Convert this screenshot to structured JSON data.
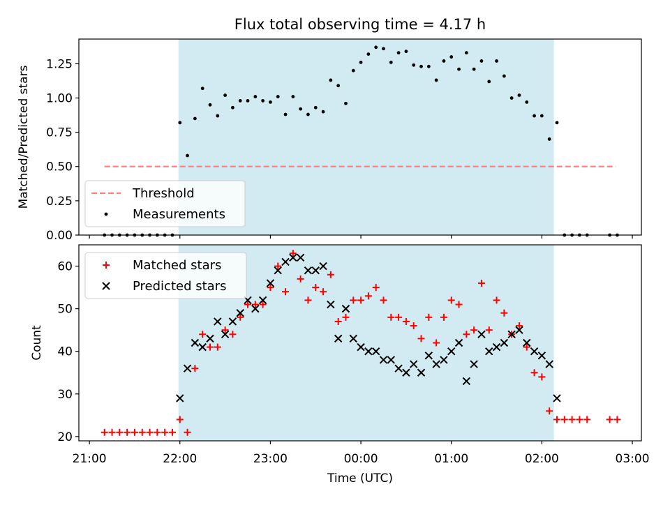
{
  "title": "Flux total observing time = 4.17 h",
  "colors": {
    "shade": "#add8e6",
    "threshold": "#ff7f7f",
    "measurement": "#000000",
    "matched": "#ff0000",
    "predicted": "#000000"
  },
  "chart_data": [
    {
      "type": "scatter",
      "panel": "top",
      "title": "Flux total observing time = 4.17 h",
      "xlabel": "",
      "ylabel": "Matched/Predicted stars",
      "xlim": [
        "20:53",
        "03:06"
      ],
      "ylim": [
        0,
        1.43
      ],
      "yticks": [
        0.0,
        0.25,
        0.5,
        0.75,
        1.0,
        1.25
      ],
      "ytick_labels": [
        "0.00",
        "0.25",
        "0.50",
        "0.75",
        "1.00",
        "1.25"
      ],
      "grid": false,
      "legend": "lower-left",
      "shaded_interval": [
        "21:59",
        "02:08"
      ],
      "threshold": {
        "name": "Threshold",
        "y": 0.5,
        "x_start": "21:10",
        "x_end": "02:49",
        "style": "dashed"
      },
      "series": [
        {
          "name": "Measurements",
          "marker": "dot",
          "points": [
            [
              "21:10",
              0
            ],
            [
              "21:15",
              0
            ],
            [
              "21:20",
              0
            ],
            [
              "21:25",
              0
            ],
            [
              "21:30",
              0
            ],
            [
              "21:35",
              0
            ],
            [
              "21:40",
              0
            ],
            [
              "21:45",
              0
            ],
            [
              "21:50",
              0
            ],
            [
              "21:55",
              0
            ],
            [
              "22:00",
              0.82
            ],
            [
              "22:05",
              0.58
            ],
            [
              "22:10",
              0.85
            ],
            [
              "22:15",
              1.07
            ],
            [
              "22:20",
              0.95
            ],
            [
              "22:25",
              0.87
            ],
            [
              "22:30",
              1.02
            ],
            [
              "22:35",
              0.93
            ],
            [
              "22:40",
              0.98
            ],
            [
              "22:45",
              0.98
            ],
            [
              "22:50",
              1.01
            ],
            [
              "22:55",
              0.98
            ],
            [
              "23:00",
              0.97
            ],
            [
              "23:05",
              1.01
            ],
            [
              "23:10",
              0.88
            ],
            [
              "23:15",
              1.01
            ],
            [
              "23:20",
              0.92
            ],
            [
              "23:25",
              0.88
            ],
            [
              "23:30",
              0.93
            ],
            [
              "23:35",
              0.9
            ],
            [
              "23:40",
              1.13
            ],
            [
              "23:45",
              1.09
            ],
            [
              "23:50",
              0.96
            ],
            [
              "23:55",
              1.2
            ],
            [
              "00:00",
              1.26
            ],
            [
              "00:05",
              1.32
            ],
            [
              "00:10",
              1.37
            ],
            [
              "00:15",
              1.36
            ],
            [
              "00:20",
              1.26
            ],
            [
              "00:25",
              1.33
            ],
            [
              "00:30",
              1.34
            ],
            [
              "00:35",
              1.24
            ],
            [
              "00:40",
              1.23
            ],
            [
              "00:45",
              1.23
            ],
            [
              "00:50",
              1.13
            ],
            [
              "00:55",
              1.27
            ],
            [
              "01:00",
              1.3
            ],
            [
              "01:05",
              1.21
            ],
            [
              "01:10",
              1.33
            ],
            [
              "01:15",
              1.21
            ],
            [
              "01:20",
              1.27
            ],
            [
              "01:25",
              1.12
            ],
            [
              "01:30",
              1.27
            ],
            [
              "01:35",
              1.16
            ],
            [
              "01:40",
              1.0
            ],
            [
              "01:45",
              1.02
            ],
            [
              "01:50",
              0.97
            ],
            [
              "01:55",
              0.87
            ],
            [
              "02:00",
              0.87
            ],
            [
              "02:05",
              0.7
            ],
            [
              "02:10",
              0.82
            ],
            [
              "02:15",
              0
            ],
            [
              "02:20",
              0
            ],
            [
              "02:25",
              0
            ],
            [
              "02:30",
              0
            ],
            [
              "02:45",
              0
            ],
            [
              "02:50",
              0
            ]
          ]
        }
      ]
    },
    {
      "type": "scatter",
      "panel": "bottom",
      "xlabel": "Time (UTC)",
      "ylabel": "Count",
      "xlim": [
        "20:53",
        "03:06"
      ],
      "ylim": [
        19,
        65
      ],
      "xticks": [
        "21:00",
        "22:00",
        "23:00",
        "00:00",
        "01:00",
        "02:00",
        "03:00"
      ],
      "yticks": [
        20,
        30,
        40,
        50,
        60
      ],
      "ytick_labels": [
        "20",
        "30",
        "40",
        "50",
        "60"
      ],
      "grid": false,
      "legend": "upper-left",
      "shaded_interval": [
        "21:59",
        "02:08"
      ],
      "series": [
        {
          "name": "Matched stars",
          "marker": "plus",
          "points": [
            [
              "21:10",
              21
            ],
            [
              "21:15",
              21
            ],
            [
              "21:20",
              21
            ],
            [
              "21:25",
              21
            ],
            [
              "21:30",
              21
            ],
            [
              "21:35",
              21
            ],
            [
              "21:40",
              21
            ],
            [
              "21:45",
              21
            ],
            [
              "21:50",
              21
            ],
            [
              "21:55",
              21
            ],
            [
              "22:00",
              24
            ],
            [
              "22:05",
              21
            ],
            [
              "22:10",
              36
            ],
            [
              "22:15",
              44
            ],
            [
              "22:20",
              41
            ],
            [
              "22:25",
              41
            ],
            [
              "22:30",
              45
            ],
            [
              "22:35",
              44
            ],
            [
              "22:40",
              48
            ],
            [
              "22:45",
              51
            ],
            [
              "22:50",
              51
            ],
            [
              "22:55",
              51
            ],
            [
              "23:00",
              55
            ],
            [
              "23:05",
              60
            ],
            [
              "23:10",
              54
            ],
            [
              "23:15",
              63
            ],
            [
              "23:20",
              57
            ],
            [
              "23:25",
              52
            ],
            [
              "23:30",
              55
            ],
            [
              "23:35",
              54
            ],
            [
              "23:40",
              58
            ],
            [
              "23:45",
              47
            ],
            [
              "23:50",
              48
            ],
            [
              "23:55",
              52
            ],
            [
              "00:00",
              52
            ],
            [
              "00:05",
              53
            ],
            [
              "00:10",
              55
            ],
            [
              "00:15",
              52
            ],
            [
              "00:20",
              48
            ],
            [
              "00:25",
              48
            ],
            [
              "00:30",
              47
            ],
            [
              "00:35",
              46
            ],
            [
              "00:40",
              43
            ],
            [
              "00:45",
              48
            ],
            [
              "00:50",
              42
            ],
            [
              "00:55",
              48
            ],
            [
              "01:00",
              52
            ],
            [
              "01:05",
              51
            ],
            [
              "01:10",
              44
            ],
            [
              "01:15",
              45
            ],
            [
              "01:20",
              56
            ],
            [
              "01:25",
              45
            ],
            [
              "01:30",
              52
            ],
            [
              "01:35",
              49
            ],
            [
              "01:40",
              44
            ],
            [
              "01:45",
              46
            ],
            [
              "01:50",
              41
            ],
            [
              "01:55",
              35
            ],
            [
              "02:00",
              34
            ],
            [
              "02:05",
              26
            ],
            [
              "02:10",
              24
            ],
            [
              "02:15",
              24
            ],
            [
              "02:20",
              24
            ],
            [
              "02:25",
              24
            ],
            [
              "02:30",
              24
            ],
            [
              "02:45",
              24
            ],
            [
              "02:50",
              24
            ]
          ]
        },
        {
          "name": "Predicted stars",
          "marker": "x",
          "points": [
            [
              "22:00",
              29
            ],
            [
              "22:05",
              36
            ],
            [
              "22:10",
              42
            ],
            [
              "22:15",
              41
            ],
            [
              "22:20",
              43
            ],
            [
              "22:25",
              47
            ],
            [
              "22:30",
              44
            ],
            [
              "22:35",
              47
            ],
            [
              "22:40",
              49
            ],
            [
              "22:45",
              52
            ],
            [
              "22:50",
              50
            ],
            [
              "22:55",
              52
            ],
            [
              "23:00",
              56
            ],
            [
              "23:05",
              59
            ],
            [
              "23:10",
              61
            ],
            [
              "23:15",
              62
            ],
            [
              "23:20",
              62
            ],
            [
              "23:25",
              59
            ],
            [
              "23:30",
              59
            ],
            [
              "23:35",
              60
            ],
            [
              "23:40",
              51
            ],
            [
              "23:45",
              43
            ],
            [
              "23:50",
              50
            ],
            [
              "23:55",
              43
            ],
            [
              "00:00",
              41
            ],
            [
              "00:05",
              40
            ],
            [
              "00:10",
              40
            ],
            [
              "00:15",
              38
            ],
            [
              "00:20",
              38
            ],
            [
              "00:25",
              36
            ],
            [
              "00:30",
              35
            ],
            [
              "00:35",
              37
            ],
            [
              "00:40",
              35
            ],
            [
              "00:45",
              39
            ],
            [
              "00:50",
              37
            ],
            [
              "00:55",
              38
            ],
            [
              "01:00",
              40
            ],
            [
              "01:05",
              42
            ],
            [
              "01:10",
              33
            ],
            [
              "01:15",
              37
            ],
            [
              "01:20",
              44
            ],
            [
              "01:25",
              40
            ],
            [
              "01:30",
              41
            ],
            [
              "01:35",
              42
            ],
            [
              "01:40",
              44
            ],
            [
              "01:45",
              45
            ],
            [
              "01:50",
              42
            ],
            [
              "01:55",
              40
            ],
            [
              "02:00",
              39
            ],
            [
              "02:05",
              37
            ],
            [
              "02:10",
              29
            ]
          ]
        }
      ]
    }
  ]
}
